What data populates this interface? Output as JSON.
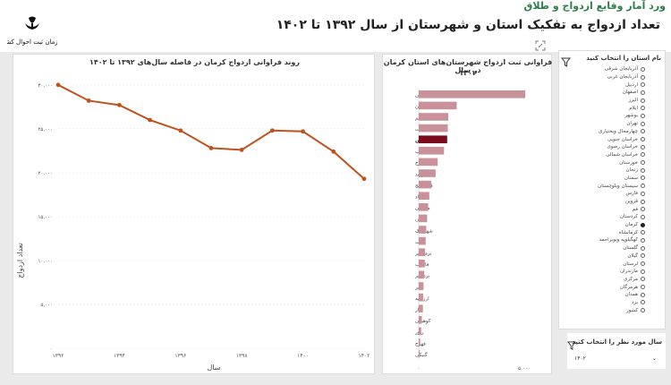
{
  "topbar": {
    "text": "ورد آمار وقایع ازدواج و طلاق"
  },
  "header": {
    "title": "تعداد ازدواج به تفکیک استان و شهرستان از سال ۱۳۹۲ تا ۱۴۰۲",
    "logo_text": "سازمان ثبت احوال کشور"
  },
  "icons": {
    "logo": "emblem-icon",
    "focus": "focus-mode-icon",
    "filter": "filter-funnel-icon",
    "dropdown": "chevron-down-icon"
  },
  "colors": {
    "line": "#c0521f",
    "bar": "#c9929a",
    "bar_highlight": "#7a0b1d",
    "accent": "#2e7d4a"
  },
  "line_chart": {
    "title": "روند فراوانی ازدواج کرمان در فاصله سال‌های ۱۳۹۲ تا ۱۴۰۲",
    "xlabel": "سال",
    "ylabel": "تعداد ازدواج"
  },
  "bar_chart": {
    "title_line1": "فراوانی ثبت ازدواج شهرستان‌های استان کرمان در سال",
    "title_line2": "۱۴۰۲"
  },
  "chart_data": [
    {
      "type": "line",
      "title": "روند فراوانی ازدواج کرمان در فاصله سال‌های ۱۳۹۲ تا ۱۴۰۲",
      "xlabel": "سال",
      "ylabel": "تعداد ازدواج",
      "x": [
        1392,
        1393,
        1394,
        1395,
        1396,
        1397,
        1398,
        1399,
        1400,
        1401,
        1402
      ],
      "values": [
        30000,
        28200,
        27700,
        26000,
        24800,
        22800,
        22600,
        24800,
        24700,
        22400,
        19300
      ],
      "xticks": [
        1392,
        1394,
        1396,
        1398,
        1400,
        1402
      ],
      "xtick_labels": [
        "۱۳۹۲",
        "۱۳۹۴",
        "۱۳۹۶",
        "۱۳۹۸",
        "۱۴۰۰",
        "۱۴۰۲"
      ],
      "yticks": [
        0,
        5000,
        10000,
        15000,
        20000,
        25000,
        30000
      ],
      "ytick_labels": [
        "۰",
        "۵,۰۰۰",
        "۱۰,۰۰۰",
        "۱۵,۰۰۰",
        "۲۰,۰۰۰",
        "۲۵,۰۰۰",
        "۳۰,۰۰۰"
      ],
      "ylim": [
        0,
        31000
      ],
      "grid": true
    },
    {
      "type": "bar",
      "orientation": "horizontal",
      "categories": [
        "کرمان",
        "سیرجان",
        "بم",
        "جیرفت",
        "رفسنجان",
        "رودبارجنوب",
        "کهنوج",
        "زرند",
        "قلعه گنج",
        "عنبرآباد",
        "منوجان",
        "ریگان",
        "شهربابک",
        "بافت",
        "نرماشیر",
        "فاریاب",
        "بردسیر",
        "رابر",
        "ارزوئیه",
        "انار",
        "کوهبنان",
        "راور",
        "فهرج",
        "گنبکی"
      ],
      "values": [
        5050,
        1800,
        1400,
        1380,
        1350,
        1200,
        900,
        800,
        600,
        500,
        450,
        400,
        360,
        330,
        300,
        290,
        260,
        230,
        210,
        200,
        150,
        120,
        70,
        50
      ],
      "highlight": "رفسنجان",
      "xticks": [
        0,
        5000
      ],
      "xtick_labels": [
        "۰",
        "۵,۰۰۰"
      ],
      "xlim": [
        0,
        5300
      ]
    }
  ],
  "province_filter": {
    "title": "نام استان را انتخاب کنید",
    "selected": "کرمان",
    "items": [
      "آذربایجان شرقی",
      "آذربایجان غربی",
      "اردبیل",
      "اصفهان",
      "البرز",
      "ایلام",
      "بوشهر",
      "تهران",
      "چهارمحال وبختیاری",
      "خراسان جنوبی",
      "خراسان رضوی",
      "خراسان شمالی",
      "خوزستان",
      "زنجان",
      "سمنان",
      "سیستان وبلوچستان",
      "فارس",
      "قزوین",
      "قم",
      "کردستان",
      "کرمان",
      "کرمانشاه",
      "کهگیلویه وبویراحمد",
      "گلستان",
      "گیلان",
      "لرستان",
      "مازندران",
      "مرکزی",
      "هرمزگان",
      "همدان",
      "یزد",
      "کشور"
    ]
  },
  "year_filter": {
    "title": "سال مورد نظر را انتخاب کنید",
    "value": "۱۴۰۲",
    "chevron": "⌄"
  }
}
